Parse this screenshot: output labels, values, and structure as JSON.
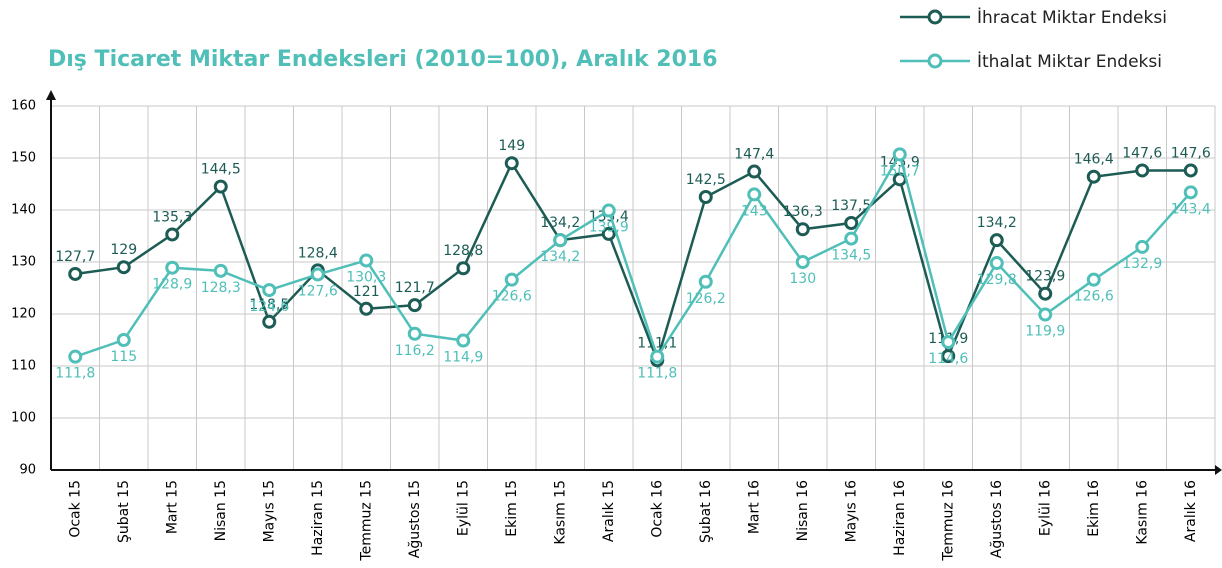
{
  "chart_data": {
    "type": "line",
    "title": "Dış Ticaret Miktar Endeksleri (2010=100), Aralık 2016",
    "categories": [
      "Ocak 15",
      "Şubat 15",
      "Mart 15",
      "Nisan 15",
      "Mayıs 15",
      "Haziran 15",
      "Temmuz 15",
      "Ağustos 15",
      "Eylül 15",
      "Ekim 15",
      "Kasım 15",
      "Aralık 15",
      "Ocak 16",
      "Şubat 16",
      "Mart 16",
      "Nisan 16",
      "Mayıs 16",
      "Haziran 16",
      "Temmuz 16",
      "Ağustos 16",
      "Eylül 16",
      "Ekim 16",
      "Kasım 16",
      "Aralık 16"
    ],
    "series": [
      {
        "name": "İhracat Miktar Endeksi",
        "color": "#1d5c55",
        "values": [
          127.7,
          129,
          135.3,
          144.5,
          118.5,
          128.4,
          121,
          121.7,
          128.8,
          149,
          134.2,
          135.4,
          111.1,
          142.5,
          147.4,
          136.3,
          137.5,
          145.9,
          111.9,
          134.2,
          123.9,
          146.4,
          147.6,
          147.6
        ],
        "value_labels": [
          "127,7",
          "129",
          "135,3",
          "144,5",
          "118,5",
          "128,4",
          "121",
          "121,7",
          "128,8",
          "149",
          "134,2",
          "135,4",
          "111,1",
          "142,5",
          "147,4",
          "136,3",
          "137,5",
          "145,9",
          "111,9",
          "134,2",
          "123,9",
          "146,4",
          "147,6",
          "147,6"
        ]
      },
      {
        "name": "İthalat Miktar Endeksi",
        "color": "#4fbfb8",
        "values": [
          111.8,
          115,
          128.9,
          128.3,
          124.6,
          127.6,
          130.3,
          116.2,
          114.9,
          126.6,
          134.2,
          139.9,
          111.8,
          126.2,
          143,
          130,
          134.5,
          150.7,
          114.6,
          129.8,
          119.9,
          126.6,
          132.9,
          143.4
        ],
        "value_labels": [
          "111,8",
          "115",
          "128,9",
          "128,3",
          "124,6",
          "127,6",
          "130,3",
          "116,2",
          "114,9",
          "126,6",
          "134,2",
          "139,9",
          "111,8",
          "126,2",
          "143",
          "130",
          "134,5",
          "150,7",
          "114,6",
          "129,8",
          "119,9",
          "126,6",
          "132,9",
          "143,4"
        ]
      }
    ],
    "ylim": [
      90,
      160
    ],
    "yticks": [
      90,
      100,
      110,
      120,
      130,
      140,
      150,
      160
    ],
    "grid": true
  }
}
